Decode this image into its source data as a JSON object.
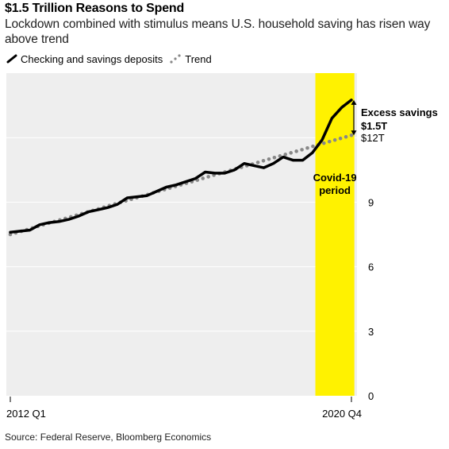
{
  "header": {
    "title": "$1.5 Trillion Reasons to Spend",
    "subtitle": "Lockdown combined with stimulus means U.S. household saving has risen way above trend"
  },
  "legend": {
    "deposits_label": "Checking and savings deposits",
    "trend_label": "Trend"
  },
  "footer": {
    "source": "Source: Federal Reserve, Bloomberg Economics"
  },
  "chart_data": {
    "type": "line",
    "title": "$1.5 Trillion Reasons to Spend",
    "xlabel": "",
    "ylabel": "",
    "x": [
      "2012 Q1",
      "2012 Q2",
      "2012 Q3",
      "2012 Q4",
      "2013 Q1",
      "2013 Q2",
      "2013 Q3",
      "2013 Q4",
      "2014 Q1",
      "2014 Q2",
      "2014 Q3",
      "2014 Q4",
      "2015 Q1",
      "2015 Q2",
      "2015 Q3",
      "2015 Q4",
      "2016 Q1",
      "2016 Q2",
      "2016 Q3",
      "2016 Q4",
      "2017 Q1",
      "2017 Q2",
      "2017 Q3",
      "2017 Q4",
      "2018 Q1",
      "2018 Q2",
      "2018 Q3",
      "2018 Q4",
      "2019 Q1",
      "2019 Q2",
      "2019 Q3",
      "2019 Q4",
      "2020 Q1",
      "2020 Q2",
      "2020 Q3",
      "2020 Q4"
    ],
    "x_tick_labels": [
      "2012 Q1",
      "2020 Q4"
    ],
    "series": [
      {
        "name": "Checking and savings deposits",
        "style": "solid",
        "color": "#000000",
        "values": [
          7.6,
          7.65,
          7.7,
          7.95,
          8.05,
          8.1,
          8.2,
          8.35,
          8.55,
          8.65,
          8.75,
          8.9,
          9.2,
          9.25,
          9.3,
          9.5,
          9.7,
          9.8,
          9.95,
          10.1,
          10.4,
          10.35,
          10.35,
          10.5,
          10.8,
          10.7,
          10.6,
          10.8,
          11.1,
          10.95,
          10.95,
          11.3,
          11.9,
          12.9,
          13.4,
          13.75
        ]
      },
      {
        "name": "Trend",
        "style": "dotted",
        "color": "#888888",
        "values": [
          7.5,
          7.63,
          7.76,
          7.9,
          8.03,
          8.16,
          8.29,
          8.42,
          8.55,
          8.68,
          8.82,
          8.95,
          9.08,
          9.21,
          9.34,
          9.48,
          9.61,
          9.74,
          9.87,
          10.0,
          10.14,
          10.27,
          10.4,
          10.53,
          10.66,
          10.79,
          10.93,
          11.06,
          11.19,
          11.32,
          11.45,
          11.59,
          11.72,
          11.85,
          11.98,
          12.11
        ]
      }
    ],
    "ylim": [
      0,
      15
    ],
    "y_ticks": [
      0,
      3,
      6,
      9
    ],
    "y_tick_labels": [
      "0",
      "3",
      "6",
      "9"
    ],
    "y_top_label": "$12T",
    "highlight": {
      "label_line1": "Covid-19",
      "label_line2": "period",
      "start_index": 31.3,
      "end_index": 35.3,
      "color": "#FFF200"
    },
    "annotation": {
      "line1": "Excess savings",
      "line2": "$1.5T"
    },
    "plot_background": "#EEEEEE",
    "grid": true
  }
}
